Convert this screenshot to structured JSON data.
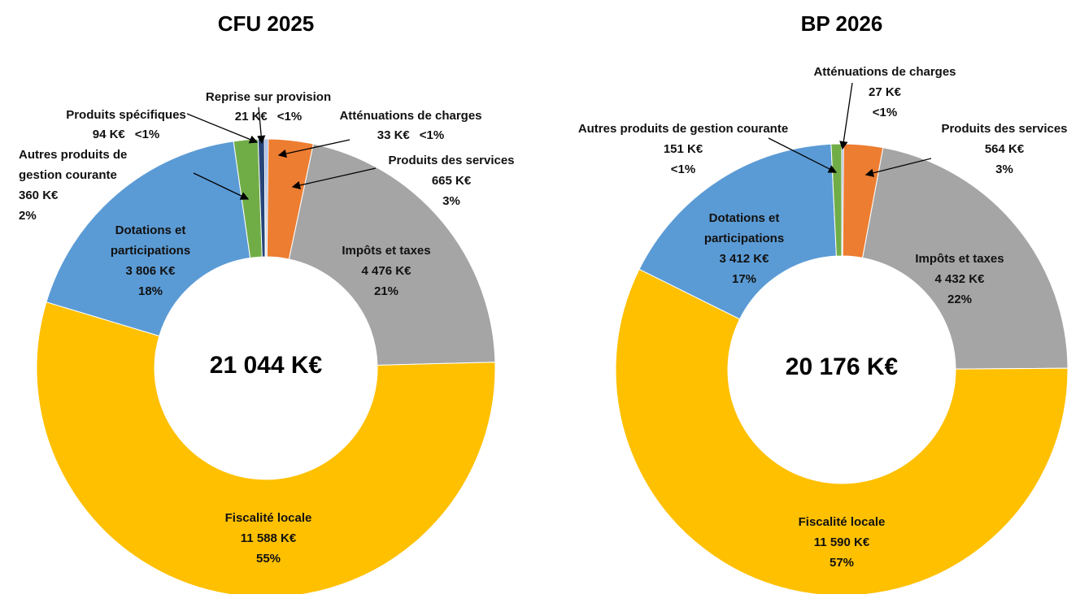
{
  "chart_data": [
    {
      "type": "donut",
      "title": "CFU 2025",
      "total_label": "21 044 K€",
      "categories": [
        "Atténuations de charges",
        "Produits des services",
        "Impôts et taxes",
        "Fiscalité locale",
        "Dotations et participations",
        "Autres produits de gestion courante",
        "Produits spécifiques",
        "Reprise sur provision"
      ],
      "values": [
        33,
        665,
        4476,
        11588,
        3806,
        360,
        94,
        21
      ],
      "value_labels": [
        "33 K€",
        "665 K€",
        "4 476 K€",
        "11 588 K€",
        "3 806 K€",
        "360 K€",
        "94 K€",
        "21 K€"
      ],
      "percent_labels": [
        "<1%",
        "3%",
        "21%",
        "55%",
        "18%",
        "2%",
        "<1%",
        "<1%"
      ],
      "colors": [
        "#8faadc",
        "#ed7d31",
        "#a5a5a5",
        "#ffc000",
        "#5b9bd5",
        "#70ad47",
        "#264478",
        "#4472c4"
      ]
    },
    {
      "type": "donut",
      "title": "BP 2026",
      "total_label": "20 176 K€",
      "categories": [
        "Atténuations de charges",
        "Produits des services",
        "Impôts et taxes",
        "Fiscalité locale",
        "Dotations et participations",
        "Autres produits de gestion courante"
      ],
      "values": [
        27,
        564,
        4432,
        11590,
        3412,
        151
      ],
      "value_labels": [
        "27 K€",
        "564 K€",
        "4 432 K€",
        "11 590 K€",
        "3 412 K€",
        "151 K€"
      ],
      "percent_labels": [
        "<1%",
        "3%",
        "22%",
        "57%",
        "17%",
        "<1%"
      ],
      "colors": [
        "#8faadc",
        "#ed7d31",
        "#a5a5a5",
        "#ffc000",
        "#5b9bd5",
        "#70ad47"
      ]
    }
  ]
}
